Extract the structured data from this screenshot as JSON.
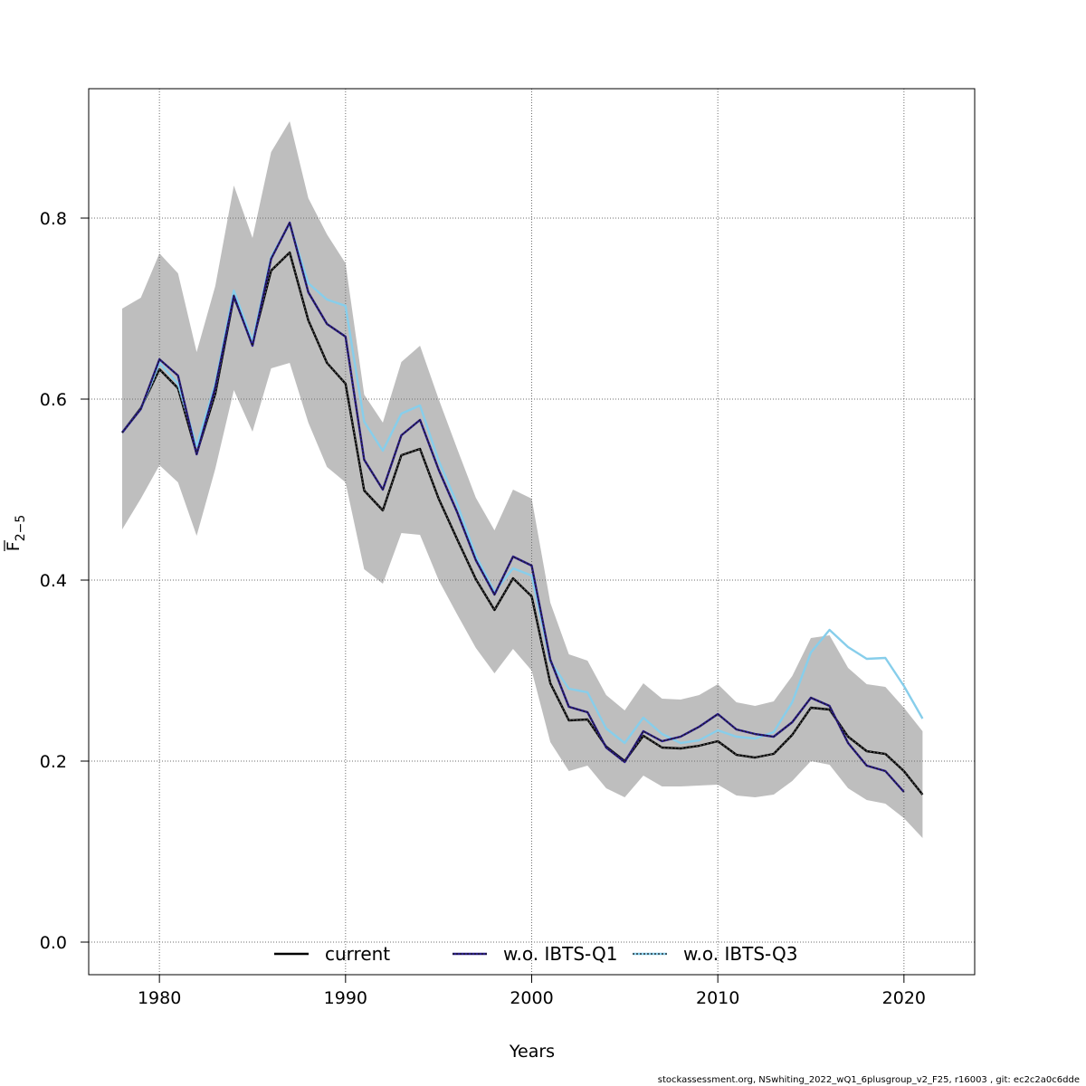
{
  "chart_data": {
    "type": "line",
    "xlabel": "Years",
    "ylabel": "F",
    "ylabel_subscript": "2−5",
    "xlim": [
      1976.2,
      2023.8
    ],
    "ylim": [
      -0.036,
      0.943
    ],
    "x_ticks": [
      1980,
      1990,
      2000,
      2010,
      2020
    ],
    "x_tick_labels": [
      "1980",
      "1990",
      "2000",
      "2010",
      "2020"
    ],
    "y_ticks": [
      0.0,
      0.2,
      0.4,
      0.6,
      0.8
    ],
    "y_tick_labels": [
      "0.0",
      "0.2",
      "0.4",
      "0.6",
      "0.8"
    ],
    "grid": true,
    "legend_position": "bottom",
    "band": {
      "x": [
        1978,
        1979,
        1980,
        1981,
        1982,
        1983,
        1984,
        1985,
        1986,
        1987,
        1988,
        1989,
        1990,
        1991,
        1992,
        1993,
        1994,
        1995,
        1996,
        1997,
        1998,
        1999,
        2000,
        2001,
        2002,
        2003,
        2004,
        2005,
        2006,
        2007,
        2008,
        2009,
        2010,
        2011,
        2012,
        2013,
        2014,
        2015,
        2016,
        2017,
        2018,
        2019,
        2020,
        2021
      ],
      "lower": [
        0.456,
        0.49,
        0.527,
        0.508,
        0.449,
        0.523,
        0.61,
        0.564,
        0.634,
        0.64,
        0.574,
        0.525,
        0.508,
        0.412,
        0.396,
        0.452,
        0.45,
        0.4,
        0.362,
        0.325,
        0.297,
        0.324,
        0.3,
        0.221,
        0.189,
        0.195,
        0.17,
        0.16,
        0.184,
        0.172,
        0.172,
        0.173,
        0.174,
        0.162,
        0.16,
        0.163,
        0.178,
        0.2,
        0.196,
        0.17,
        0.157,
        0.153,
        0.137,
        0.115
      ],
      "upper": [
        0.7,
        0.712,
        0.761,
        0.739,
        0.652,
        0.725,
        0.836,
        0.778,
        0.873,
        0.907,
        0.822,
        0.782,
        0.75,
        0.605,
        0.574,
        0.641,
        0.659,
        0.6,
        0.545,
        0.491,
        0.455,
        0.5,
        0.49,
        0.375,
        0.318,
        0.311,
        0.273,
        0.256,
        0.286,
        0.269,
        0.268,
        0.273,
        0.285,
        0.265,
        0.261,
        0.266,
        0.294,
        0.336,
        0.339,
        0.303,
        0.285,
        0.282,
        0.259,
        0.233
      ],
      "color": "#bebebe"
    },
    "series": [
      {
        "name": "current",
        "color": "#000000",
        "dashed_overlay_color": "#555555",
        "x": [
          1978,
          1979,
          1980,
          1981,
          1982,
          1983,
          1984,
          1985,
          1986,
          1987,
          1988,
          1989,
          1990,
          1991,
          1992,
          1993,
          1994,
          1995,
          1996,
          1997,
          1998,
          1999,
          2000,
          2001,
          2002,
          2003,
          2004,
          2005,
          2006,
          2007,
          2008,
          2009,
          2010,
          2011,
          2012,
          2013,
          2014,
          2015,
          2016,
          2017,
          2018,
          2019,
          2020,
          2021
        ],
        "values": [
          0.563,
          0.59,
          0.633,
          0.612,
          0.54,
          0.606,
          0.713,
          0.662,
          0.742,
          0.762,
          0.687,
          0.64,
          0.617,
          0.499,
          0.477,
          0.538,
          0.545,
          0.49,
          0.445,
          0.401,
          0.367,
          0.402,
          0.382,
          0.286,
          0.245,
          0.246,
          0.216,
          0.2,
          0.228,
          0.215,
          0.214,
          0.217,
          0.222,
          0.207,
          0.204,
          0.208,
          0.229,
          0.259,
          0.257,
          0.227,
          0.211,
          0.208,
          0.189,
          0.163
        ]
      },
      {
        "name": "w.o. IBTS-Q1",
        "color": "#2a1b8a",
        "dashed_overlay_color": "#1a1a1a",
        "x": [
          1978,
          1979,
          1980,
          1981,
          1982,
          1983,
          1984,
          1985,
          1986,
          1987,
          1988,
          1989,
          1990,
          1991,
          1992,
          1993,
          1994,
          1995,
          1996,
          1997,
          1998,
          1999,
          2000,
          2001,
          2002,
          2003,
          2004,
          2005,
          2006,
          2007,
          2008,
          2009,
          2010,
          2011,
          2012,
          2013,
          2014,
          2015,
          2016,
          2017,
          2018,
          2019,
          2020
        ],
        "values": [
          0.563,
          0.589,
          0.644,
          0.626,
          0.539,
          0.613,
          0.714,
          0.659,
          0.755,
          0.795,
          0.718,
          0.683,
          0.669,
          0.533,
          0.5,
          0.56,
          0.577,
          0.522,
          0.475,
          0.422,
          0.384,
          0.426,
          0.416,
          0.312,
          0.26,
          0.254,
          0.215,
          0.199,
          0.233,
          0.222,
          0.227,
          0.238,
          0.252,
          0.235,
          0.23,
          0.227,
          0.243,
          0.27,
          0.261,
          0.22,
          0.195,
          0.189,
          0.166
        ]
      },
      {
        "name": "w.o. IBTS-Q3",
        "color": "#87ceeb",
        "dashed_overlay_color": "#1a1a1a",
        "x": [
          1978,
          1979,
          1980,
          1981,
          1982,
          1983,
          1984,
          1985,
          1986,
          1987,
          1988,
          1989,
          1990,
          1991,
          1992,
          1993,
          1994,
          1995,
          1996,
          1997,
          1998,
          1999,
          2000,
          2001,
          2002,
          2003,
          2004,
          2005,
          2006,
          2007,
          2008,
          2009,
          2010,
          2011,
          2012,
          2013,
          2014,
          2015,
          2016,
          2017,
          2018,
          2019,
          2020,
          2021
        ],
        "values": [
          0.563,
          0.589,
          0.64,
          0.617,
          0.548,
          0.617,
          0.72,
          0.664,
          0.757,
          0.794,
          0.728,
          0.71,
          0.703,
          0.575,
          0.543,
          0.584,
          0.593,
          0.532,
          0.484,
          0.427,
          0.387,
          0.413,
          0.405,
          0.31,
          0.28,
          0.276,
          0.236,
          0.22,
          0.248,
          0.23,
          0.22,
          0.223,
          0.234,
          0.227,
          0.225,
          0.232,
          0.265,
          0.32,
          0.345,
          0.326,
          0.313,
          0.314,
          0.283,
          0.247
        ]
      }
    ]
  },
  "footer": "stockassessment.org, NSwhiting_2022_wQ1_6plusgroup_v2_F25, r16003 , git: ec2c2a0c6dde"
}
